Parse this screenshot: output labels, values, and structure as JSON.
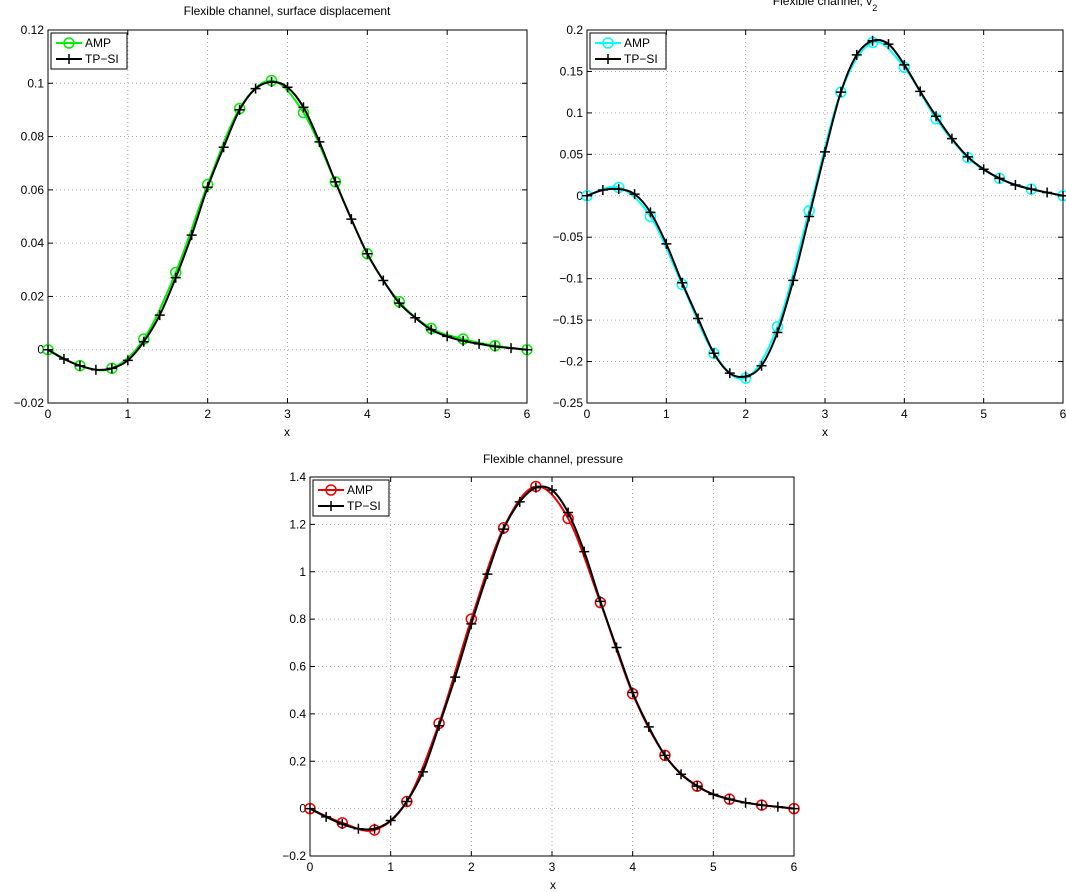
{
  "chart_data": [
    {
      "type": "line",
      "title": "Flexible channel, surface displacement",
      "xlabel": "",
      "ylabel": "",
      "xlim": [
        0,
        6
      ],
      "ylim": [
        -0.02,
        0.12
      ],
      "xticks": [
        "0",
        "1",
        "2",
        "3",
        "4",
        "5",
        "6"
      ],
      "yticks": [
        "−0.02",
        "0",
        "0.02",
        "0.04",
        "0.06",
        "0.08",
        "0.1",
        "0.12"
      ],
      "grid": true,
      "legend": "top-left",
      "series": [
        {
          "name": "AMP",
          "color": "#00ee00",
          "marker": "circle",
          "x": [
            0,
            0.4,
            0.8,
            1.2,
            1.6,
            2.0,
            2.4,
            2.8,
            3.2,
            3.6,
            4.0,
            4.4,
            4.8,
            5.2,
            5.6,
            6.0
          ],
          "y": [
            0,
            -0.006,
            -0.007,
            0.004,
            0.029,
            0.062,
            0.0905,
            0.101,
            0.089,
            0.063,
            0.036,
            0.018,
            0.008,
            0.004,
            0.0015,
            0
          ]
        },
        {
          "name": "TP−SI",
          "color": "#000000",
          "marker": "plus",
          "x": [
            0,
            0.2,
            0.4,
            0.6,
            0.8,
            1.0,
            1.2,
            1.4,
            1.6,
            1.8,
            2.0,
            2.2,
            2.4,
            2.6,
            2.8,
            3.0,
            3.2,
            3.4,
            3.6,
            3.8,
            4.0,
            4.2,
            4.4,
            4.6,
            4.8,
            5.0,
            5.2,
            5.4,
            5.6,
            5.8,
            6.0
          ],
          "y": [
            0,
            -0.0035,
            -0.006,
            -0.0075,
            -0.007,
            -0.004,
            0.003,
            0.013,
            0.027,
            0.043,
            0.061,
            0.076,
            0.09,
            0.098,
            0.1005,
            0.0985,
            0.091,
            0.078,
            0.063,
            0.049,
            0.036,
            0.026,
            0.0175,
            0.012,
            0.0075,
            0.005,
            0.0033,
            0.0022,
            0.0012,
            0.0006,
            0
          ]
        }
      ]
    },
    {
      "type": "line",
      "title": "Flexible channel, v",
      "title_sub": "2",
      "xlabel": "",
      "ylabel": "",
      "xlim": [
        0,
        6
      ],
      "ylim": [
        -0.25,
        0.2
      ],
      "xticks": [
        "0",
        "1",
        "2",
        "3",
        "4",
        "5",
        "6"
      ],
      "yticks": [
        "−0.25",
        "−0.2",
        "−0.15",
        "−0.1",
        "−0.05",
        "0",
        "0.05",
        "0.1",
        "0.15",
        "0.2"
      ],
      "grid": true,
      "legend": "top-left",
      "series": [
        {
          "name": "AMP",
          "color": "#00ffff",
          "marker": "circle",
          "x": [
            0,
            0.4,
            0.8,
            1.2,
            1.6,
            2.0,
            2.4,
            2.8,
            3.2,
            3.6,
            4.0,
            4.4,
            4.8,
            5.2,
            5.6,
            6.0
          ],
          "y": [
            0,
            0.01,
            -0.025,
            -0.107,
            -0.19,
            -0.22,
            -0.158,
            -0.018,
            0.125,
            0.185,
            0.155,
            0.093,
            0.046,
            0.021,
            0.008,
            0
          ]
        },
        {
          "name": "TP−SI",
          "color": "#000000",
          "marker": "plus",
          "x": [
            0,
            0.2,
            0.4,
            0.6,
            0.8,
            1.0,
            1.2,
            1.4,
            1.6,
            1.8,
            2.0,
            2.2,
            2.4,
            2.6,
            2.8,
            3.0,
            3.2,
            3.4,
            3.6,
            3.8,
            4.0,
            4.2,
            4.4,
            4.6,
            4.8,
            5.0,
            5.2,
            5.4,
            5.6,
            5.8,
            6.0
          ],
          "y": [
            0,
            0.007,
            0.008,
            0.002,
            -0.02,
            -0.058,
            -0.105,
            -0.148,
            -0.19,
            -0.214,
            -0.218,
            -0.205,
            -0.165,
            -0.102,
            -0.025,
            0.053,
            0.125,
            0.17,
            0.187,
            0.183,
            0.158,
            0.126,
            0.096,
            0.069,
            0.047,
            0.032,
            0.021,
            0.013,
            0.008,
            0.004,
            0
          ]
        }
      ]
    },
    {
      "type": "line",
      "title": "Flexible channel, pressure",
      "xlabel": "x",
      "ylabel": "",
      "xlim": [
        0,
        6
      ],
      "ylim": [
        -0.2,
        1.4
      ],
      "xticks": [
        "0",
        "1",
        "2",
        "3",
        "4",
        "5",
        "6"
      ],
      "yticks": [
        "−0.2",
        "0",
        "0.2",
        "0.4",
        "0.6",
        "0.8",
        "1",
        "1.2",
        "1.4"
      ],
      "grid": true,
      "legend": "top-left",
      "series": [
        {
          "name": "AMP",
          "color": "#ee0000",
          "marker": "circle",
          "x": [
            0,
            0.4,
            0.8,
            1.2,
            1.6,
            2.0,
            2.4,
            2.8,
            3.2,
            3.6,
            4.0,
            4.4,
            4.8,
            5.2,
            5.6,
            6.0
          ],
          "y": [
            0,
            -0.06,
            -0.09,
            0.03,
            0.36,
            0.8,
            1.185,
            1.36,
            1.225,
            0.87,
            0.485,
            0.225,
            0.095,
            0.04,
            0.015,
            0
          ]
        },
        {
          "name": "TP−SI",
          "color": "#000000",
          "marker": "plus",
          "x": [
            0,
            0.2,
            0.4,
            0.6,
            0.8,
            1.0,
            1.2,
            1.4,
            1.6,
            1.8,
            2.0,
            2.2,
            2.4,
            2.6,
            2.8,
            3.0,
            3.2,
            3.4,
            3.6,
            3.8,
            4.0,
            4.2,
            4.4,
            4.6,
            4.8,
            5.0,
            5.2,
            5.4,
            5.6,
            5.8,
            6.0
          ],
          "y": [
            0,
            -0.035,
            -0.065,
            -0.085,
            -0.085,
            -0.05,
            0.03,
            0.155,
            0.35,
            0.555,
            0.78,
            0.99,
            1.18,
            1.295,
            1.355,
            1.345,
            1.25,
            1.085,
            0.875,
            0.68,
            0.49,
            0.345,
            0.225,
            0.145,
            0.095,
            0.06,
            0.04,
            0.025,
            0.015,
            0.008,
            0
          ]
        }
      ]
    }
  ]
}
